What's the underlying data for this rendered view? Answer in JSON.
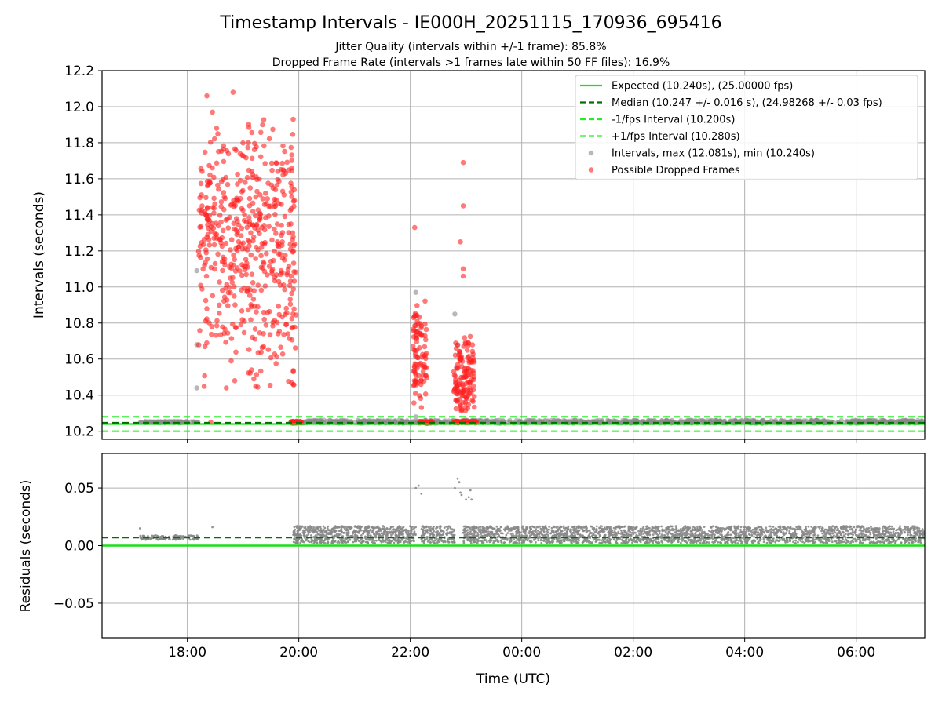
{
  "title": "Timestamp Intervals - IE000H_20251115_170936_695416",
  "subtitle_1": "Jitter Quality (intervals within +/-1 frame): 85.8%",
  "subtitle_2": "Dropped Frame Rate (intervals >1 frames late within 50 FF files): 16.9%",
  "colors": {
    "expected": "#18e018",
    "median": "#007000",
    "interval_band": "#22ee22",
    "intervals": "#888888",
    "dropped": "#ff2020",
    "grid": "#b0b0b0"
  },
  "chart_data": [
    {
      "type": "scatter",
      "xlabel": "",
      "ylabel": "Intervals (seconds)",
      "x_unit": "hours since 16:00 UTC",
      "xlim": [
        16.47,
        31.23
      ],
      "ylim": [
        10.155,
        12.2
      ],
      "yticks": [
        "10.2",
        "10.4",
        "10.6",
        "10.8",
        "11.0",
        "11.2",
        "11.4",
        "11.6",
        "11.8",
        "12.0",
        "12.2"
      ],
      "grid": true,
      "legend_position": "top-right",
      "legend": [
        {
          "label": "Expected (10.240s), (25.00000 fps)",
          "style": "solid",
          "color": "#18e018"
        },
        {
          "label": "Median (10.247 +/- 0.016 s), (24.98268 +/- 0.03 fps)",
          "style": "dashed",
          "color": "#007000"
        },
        {
          "label": "-1/fps Interval (10.200s)",
          "style": "dashed",
          "color": "#22ee22"
        },
        {
          "label": "+1/fps Interval (10.280s)",
          "style": "dashed",
          "color": "#22ee22"
        },
        {
          "label": "Intervals, max (12.081s), min (10.240s)",
          "style": "marker",
          "color": "#888888"
        },
        {
          "label": "Possible Dropped Frames",
          "style": "marker",
          "color": "#ff2020"
        }
      ],
      "reference_lines": {
        "expected": 10.24,
        "median": 10.247,
        "minus_1fps": 10.2,
        "plus_1fps": 10.28
      },
      "series": [
        {
          "name": "Intervals, max (12.081s), min (10.240s)",
          "clusters": [
            {
              "x_range": [
                17.15,
                18.2
              ],
              "y_range": [
                10.245,
                10.255
              ],
              "count": 90
            },
            {
              "x_range": [
                19.9,
                31.23
              ],
              "y_range": [
                10.243,
                10.262
              ],
              "count": 900
            }
          ],
          "points": [
            [
              18.17,
              11.09
            ],
            [
              18.17,
              10.68
            ],
            [
              18.17,
              10.44
            ],
            [
              22.1,
              10.97
            ],
            [
              22.1,
              10.73
            ],
            [
              22.1,
              10.28
            ],
            [
              22.8,
              10.85
            ],
            [
              22.85,
              10.68
            ],
            [
              22.85,
              10.42
            ],
            [
              22.85,
              10.37
            ]
          ]
        },
        {
          "name": "Possible Dropped Frames",
          "clusters": [
            {
              "x_range": [
                18.2,
                19.95
              ],
              "y_range": [
                10.38,
                11.95
              ],
              "count": 520,
              "mode": 11.3
            },
            {
              "x_range": [
                22.05,
                22.3
              ],
              "y_range": [
                10.3,
                10.95
              ],
              "count": 90,
              "mode": 10.6
            },
            {
              "x_range": [
                22.78,
                23.15
              ],
              "y_range": [
                10.26,
                10.75
              ],
              "count": 130,
              "mode": 10.45
            },
            {
              "x_range": [
                19.85,
                20.05
              ],
              "y_range": [
                10.243,
                10.256
              ],
              "count": 40,
              "mode": 10.25
            },
            {
              "x_range": [
                22.15,
                22.4
              ],
              "y_range": [
                10.243,
                10.256
              ],
              "count": 35,
              "mode": 10.25
            },
            {
              "x_range": [
                22.78,
                23.2
              ],
              "y_range": [
                10.243,
                10.258
              ],
              "count": 55,
              "mode": 10.25
            }
          ],
          "points": [
            [
              18.35,
              12.06
            ],
            [
              18.82,
              12.08
            ],
            [
              19.9,
              11.93
            ],
            [
              19.35,
              11.9
            ],
            [
              18.45,
              11.97
            ],
            [
              22.95,
              11.69
            ],
            [
              22.08,
              11.33
            ],
            [
              22.95,
              11.45
            ],
            [
              22.9,
              11.25
            ],
            [
              22.95,
              11.1
            ],
            [
              22.95,
              11.06
            ],
            [
              18.35,
              10.88
            ],
            [
              19.9,
              10.53
            ],
            [
              18.7,
              10.44
            ],
            [
              18.85,
              10.48
            ],
            [
              18.42,
              10.25
            ]
          ]
        }
      ]
    },
    {
      "type": "scatter",
      "xlabel": "Time (UTC)",
      "ylabel": "Residuals (seconds)",
      "x_unit": "hours since 16:00 UTC",
      "xlim": [
        16.47,
        31.23
      ],
      "ylim": [
        -0.08,
        0.08
      ],
      "yticks": [
        "−0.05",
        "0.00",
        "0.05"
      ],
      "ytick_values": [
        -0.05,
        0.0,
        0.05
      ],
      "xticks": [
        "18:00",
        "20:00",
        "22:00",
        "00:00",
        "02:00",
        "04:00",
        "06:00"
      ],
      "xtick_values": [
        18,
        20,
        22,
        24,
        26,
        28,
        30
      ],
      "grid": true,
      "reference_lines": {
        "expected": 0.0,
        "median": 0.007
      },
      "series": [
        {
          "name": "Residuals",
          "clusters": [
            {
              "x_range": [
                17.15,
                18.2
              ],
              "y_range": [
                0.005,
                0.009
              ],
              "count": 120
            },
            {
              "x_range": [
                19.9,
                22.1
              ],
              "y_range": [
                0.002,
                0.017
              ],
              "count": 700
            },
            {
              "x_range": [
                22.2,
                22.8
              ],
              "y_range": [
                0.002,
                0.017
              ],
              "count": 180
            },
            {
              "x_range": [
                22.95,
                31.23
              ],
              "y_range": [
                0.002,
                0.017
              ],
              "count": 2400
            }
          ],
          "points": [
            [
              17.15,
              0.015
            ],
            [
              18.45,
              0.016
            ],
            [
              22.1,
              0.05
            ],
            [
              22.15,
              0.052
            ],
            [
              22.2,
              0.045
            ],
            [
              22.8,
              0.05
            ],
            [
              22.85,
              0.058
            ],
            [
              22.88,
              0.055
            ],
            [
              22.9,
              0.046
            ],
            [
              22.92,
              0.044
            ],
            [
              23.0,
              0.04
            ],
            [
              23.05,
              0.042
            ],
            [
              23.08,
              0.048
            ],
            [
              23.1,
              0.04
            ]
          ]
        }
      ]
    }
  ]
}
